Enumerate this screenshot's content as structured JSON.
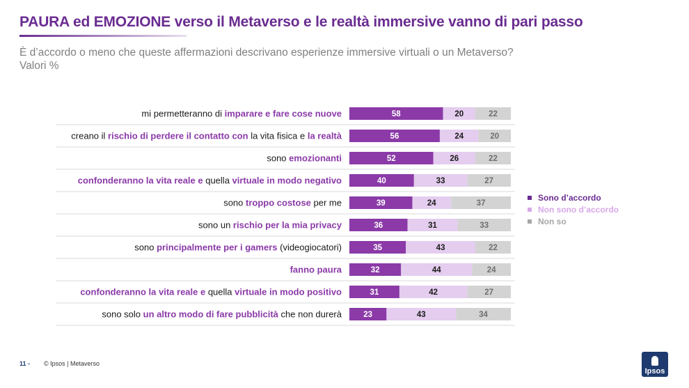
{
  "header": {
    "title": "PAURA ed EMOZIONE verso il Metaverso e le realtà immersive vanno di pari passo",
    "subtitle": "È d’accordo o meno che queste affermazioni descrivano esperienze immersive virtuali o un Metaverso?",
    "subtitle2": "Valori %"
  },
  "colors": {
    "accordo": "#8b3aa8",
    "non_accordo": "#e4cdee",
    "non_so": "#d3d3d3",
    "accent": "#6a2c91"
  },
  "chart_data": {
    "type": "bar",
    "orientation": "horizontal",
    "stacked": true,
    "categories": [
      [
        {
          "t": "mi permetteranno di ",
          "b": false
        },
        {
          "t": "imparare e fare cose nuove",
          "b": true
        }
      ],
      [
        {
          "t": "creano il ",
          "b": false
        },
        {
          "t": "rischio di perdere il contatto con",
          "b": true
        },
        {
          "t": " la vita fisica e ",
          "b": false
        },
        {
          "t": "la realtà",
          "b": true
        }
      ],
      [
        {
          "t": "sono ",
          "b": false
        },
        {
          "t": "emozionanti",
          "b": true
        }
      ],
      [
        {
          "t": "confonderanno la vita reale e",
          "b": true
        },
        {
          "t": " quella ",
          "b": false
        },
        {
          "t": "virtuale in modo negativo",
          "b": true
        }
      ],
      [
        {
          "t": "sono ",
          "b": false
        },
        {
          "t": "troppo costose",
          "b": true
        },
        {
          "t": " per me",
          "b": false
        }
      ],
      [
        {
          "t": "sono un ",
          "b": false
        },
        {
          "t": "rischio per la mia privacy",
          "b": true
        }
      ],
      [
        {
          "t": "sono ",
          "b": false
        },
        {
          "t": "principalmente per i gamers",
          "b": true
        },
        {
          "t": " (videogiocatori)",
          "b": false
        }
      ],
      [
        {
          "t": "fanno paura",
          "b": true
        }
      ],
      [
        {
          "t": "confonderanno la vita reale e",
          "b": true
        },
        {
          "t": " quella ",
          "b": false
        },
        {
          "t": "virtuale in modo positivo",
          "b": true
        }
      ],
      [
        {
          "t": "sono solo ",
          "b": false
        },
        {
          "t": "un altro modo di fare pubblicità",
          "b": true
        },
        {
          "t": " che non durerà",
          "b": false
        }
      ]
    ],
    "series": [
      {
        "name": "Sono d’accordo",
        "values": [
          58,
          56,
          52,
          40,
          39,
          36,
          35,
          32,
          31,
          23
        ]
      },
      {
        "name": "Non sono d’accordo",
        "values": [
          20,
          24,
          26,
          33,
          24,
          31,
          43,
          44,
          42,
          43
        ]
      },
      {
        "name": "Non so",
        "values": [
          22,
          20,
          22,
          27,
          37,
          33,
          22,
          24,
          27,
          34
        ]
      }
    ],
    "legend_position": "right"
  },
  "footer": {
    "page": "11 -",
    "copyright": "© Ipsos | Metaverso"
  },
  "logo": {
    "text": "Ipsos"
  }
}
